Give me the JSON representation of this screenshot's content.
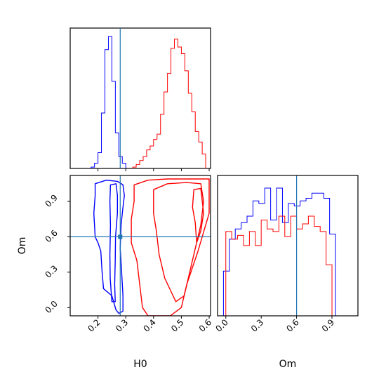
{
  "colors": {
    "series_blue": "#0000ff",
    "series_red": "#ff0000",
    "truth_line": "#1f77b4",
    "axes": "#000000"
  },
  "chart_data": [
    {
      "panel": "top-left",
      "type": "histogram",
      "parameter": "H0",
      "xlim": [
        0.1,
        0.605
      ],
      "truth_x": 0.28,
      "bin_width": 0.0125,
      "series": [
        {
          "color": "blue",
          "bin_start": 0.175,
          "counts": [
            0.01,
            0.04,
            0.12,
            0.42,
            0.9,
            1.0,
            0.66,
            0.27,
            0.09,
            0.04
          ]
        },
        {
          "color": "red",
          "bin_start": 0.325,
          "counts": [
            0.01,
            0.03,
            0.06,
            0.09,
            0.14,
            0.17,
            0.22,
            0.26,
            0.41,
            0.58,
            0.72,
            0.91,
            0.98,
            0.92,
            0.87,
            0.74,
            0.57,
            0.43,
            0.28,
            0.2,
            0.11
          ]
        }
      ]
    },
    {
      "panel": "bottom-left",
      "type": "contour",
      "xlabel": "H0",
      "ylabel": "Om",
      "xlim": [
        0.1,
        0.605
      ],
      "ylim": [
        -0.07,
        1.12
      ],
      "xticks": [
        "0.2",
        "0.3",
        "0.4",
        "0.5",
        "0.6"
      ],
      "yticks": [
        "0.0",
        "0.3",
        "0.6",
        "0.9"
      ],
      "truth": {
        "H0": 0.28,
        "Om": 0.6
      },
      "series": [
        {
          "color": "blue",
          "contours": [
            [
              [
                0.19,
                1.05
              ],
              [
                0.23,
                1.08
              ],
              [
                0.27,
                1.07
              ],
              [
                0.29,
                1.04
              ],
              [
                0.295,
                0.95
              ],
              [
                0.29,
                0.85
              ],
              [
                0.283,
                0.7
              ],
              [
                0.28,
                0.5
              ],
              [
                0.285,
                0.3
              ],
              [
                0.29,
                0.1
              ],
              [
                0.29,
                -0.03
              ],
              [
                0.275,
                -0.05
              ],
              [
                0.265,
                -0.02
              ],
              [
                0.25,
                0.1
              ],
              [
                0.22,
                0.16
              ],
              [
                0.215,
                0.3
              ],
              [
                0.21,
                0.48
              ],
              [
                0.2,
                0.55
              ],
              [
                0.19,
                0.6
              ],
              [
                0.185,
                0.8
              ],
              [
                0.19,
                0.95
              ],
              [
                0.19,
                1.05
              ]
            ],
            [
              [
                0.245,
                1.04
              ],
              [
                0.265,
                1.05
              ],
              [
                0.27,
                0.95
              ],
              [
                0.27,
                0.8
              ],
              [
                0.263,
                0.6
              ],
              [
                0.262,
                0.4
              ],
              [
                0.26,
                0.2
              ],
              [
                0.262,
                0.05
              ],
              [
                0.25,
                0.05
              ],
              [
                0.244,
                0.25
              ],
              [
                0.243,
                0.45
              ],
              [
                0.245,
                0.7
              ],
              [
                0.243,
                0.9
              ],
              [
                0.245,
                1.04
              ]
            ]
          ]
        },
        {
          "color": "red",
          "contours": [
            [
              [
                0.33,
                1.04
              ],
              [
                0.38,
                1.08
              ],
              [
                0.45,
                1.09
              ],
              [
                0.55,
                1.09
              ],
              [
                0.6,
                1.09
              ],
              [
                0.6,
                0.8
              ],
              [
                0.56,
                0.48
              ],
              [
                0.52,
                0.2
              ],
              [
                0.5,
                0.0
              ],
              [
                0.46,
                -0.07
              ],
              [
                0.38,
                -0.07
              ],
              [
                0.36,
                0.0
              ],
              [
                0.35,
                0.2
              ],
              [
                0.34,
                0.4
              ],
              [
                0.32,
                0.55
              ],
              [
                0.32,
                0.75
              ],
              [
                0.33,
                0.9
              ],
              [
                0.33,
                1.04
              ]
            ],
            [
              [
                0.4,
                1.0
              ],
              [
                0.45,
                1.05
              ],
              [
                0.52,
                1.06
              ],
              [
                0.57,
                1.05
              ],
              [
                0.58,
                0.9
              ],
              [
                0.57,
                0.7
              ],
              [
                0.55,
                0.5
              ],
              [
                0.53,
                0.3
              ],
              [
                0.51,
                0.1
              ],
              [
                0.48,
                0.05
              ],
              [
                0.46,
                0.15
              ],
              [
                0.44,
                0.25
              ],
              [
                0.42,
                0.45
              ],
              [
                0.41,
                0.65
              ],
              [
                0.4,
                0.8
              ],
              [
                0.4,
                1.0
              ]
            ],
            [
              [
                0.545,
                1.0
              ],
              [
                0.57,
                1.01
              ],
              [
                0.58,
                0.8
              ],
              [
                0.57,
                0.65
              ],
              [
                0.555,
                0.55
              ],
              [
                0.55,
                0.72
              ],
              [
                0.54,
                0.85
              ],
              [
                0.545,
                1.0
              ]
            ]
          ]
        }
      ]
    },
    {
      "panel": "bottom-right",
      "type": "histogram",
      "parameter": "Om",
      "xlabel": "Om",
      "xlim": [
        -0.07,
        1.12
      ],
      "xticks": [
        "0.0",
        "0.3",
        "0.6",
        "0.9"
      ],
      "truth_x": 0.6,
      "bin_width": 0.05,
      "series": [
        {
          "color": "blue",
          "bin_start": -0.07,
          "counts": [
            0.0,
            0.35,
            0.6,
            0.68,
            0.73,
            0.78,
            0.9,
            0.88,
            1.0,
            0.75,
            1.0,
            0.73,
            0.88,
            0.86,
            0.9,
            0.92,
            0.96,
            0.96,
            0.92,
            0.64,
            0.0
          ]
        },
        {
          "color": "red",
          "bin_start": 0.0,
          "counts": [
            0.66,
            0.6,
            0.63,
            0.55,
            0.66,
            0.55,
            0.75,
            0.68,
            0.66,
            0.78,
            0.62,
            0.78,
            0.68,
            0.72,
            0.78,
            0.7,
            0.66,
            0.4,
            0.0
          ]
        }
      ]
    }
  ]
}
